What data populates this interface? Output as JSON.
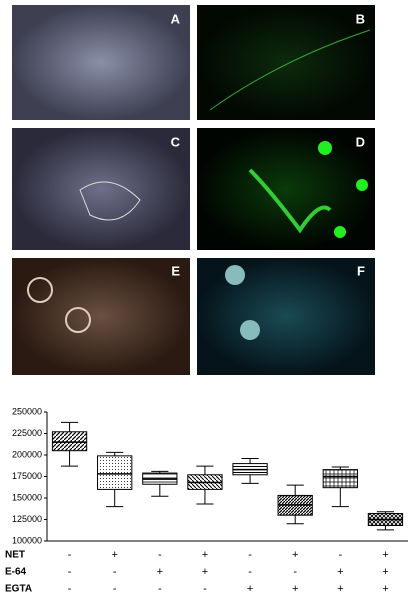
{
  "panels": [
    "A",
    "B",
    "C",
    "D",
    "E",
    "F"
  ],
  "chart_data": {
    "type": "box",
    "boxes": [
      {
        "min": 187000,
        "q1": 205000,
        "median": 215000,
        "q3": 227000,
        "max": 238000
      },
      {
        "min": 140000,
        "q1": 160000,
        "median": 178000,
        "q3": 199000,
        "max": 203000
      },
      {
        "min": 152000,
        "q1": 166000,
        "median": 172000,
        "q3": 179000,
        "max": 181000
      },
      {
        "min": 143000,
        "q1": 160000,
        "median": 168000,
        "q3": 177000,
        "max": 187000
      },
      {
        "min": 167000,
        "q1": 177000,
        "median": 183000,
        "q3": 190000,
        "max": 196000
      },
      {
        "min": 120000,
        "q1": 130000,
        "median": 142000,
        "q3": 153000,
        "max": 165000
      },
      {
        "min": 140000,
        "q1": 162000,
        "median": 175000,
        "q3": 183000,
        "max": 186000
      },
      {
        "min": 113000,
        "q1": 118000,
        "median": 125000,
        "q3": 132000,
        "max": 134000
      }
    ],
    "ylim": [
      100000,
      250000
    ],
    "yticks": [
      100000,
      125000,
      150000,
      175000,
      200000,
      225000,
      250000
    ],
    "conditions": [
      {
        "name": "NET",
        "marks": [
          "-",
          "+",
          "-",
          "+",
          "-",
          "+",
          "-",
          "+"
        ]
      },
      {
        "name": "E-64",
        "marks": [
          "-",
          "-",
          "+",
          "+",
          "-",
          "-",
          "+",
          "+"
        ]
      },
      {
        "name": "EGTA",
        "marks": [
          "-",
          "-",
          "-",
          "-",
          "+",
          "+",
          "+",
          "+"
        ]
      }
    ]
  }
}
